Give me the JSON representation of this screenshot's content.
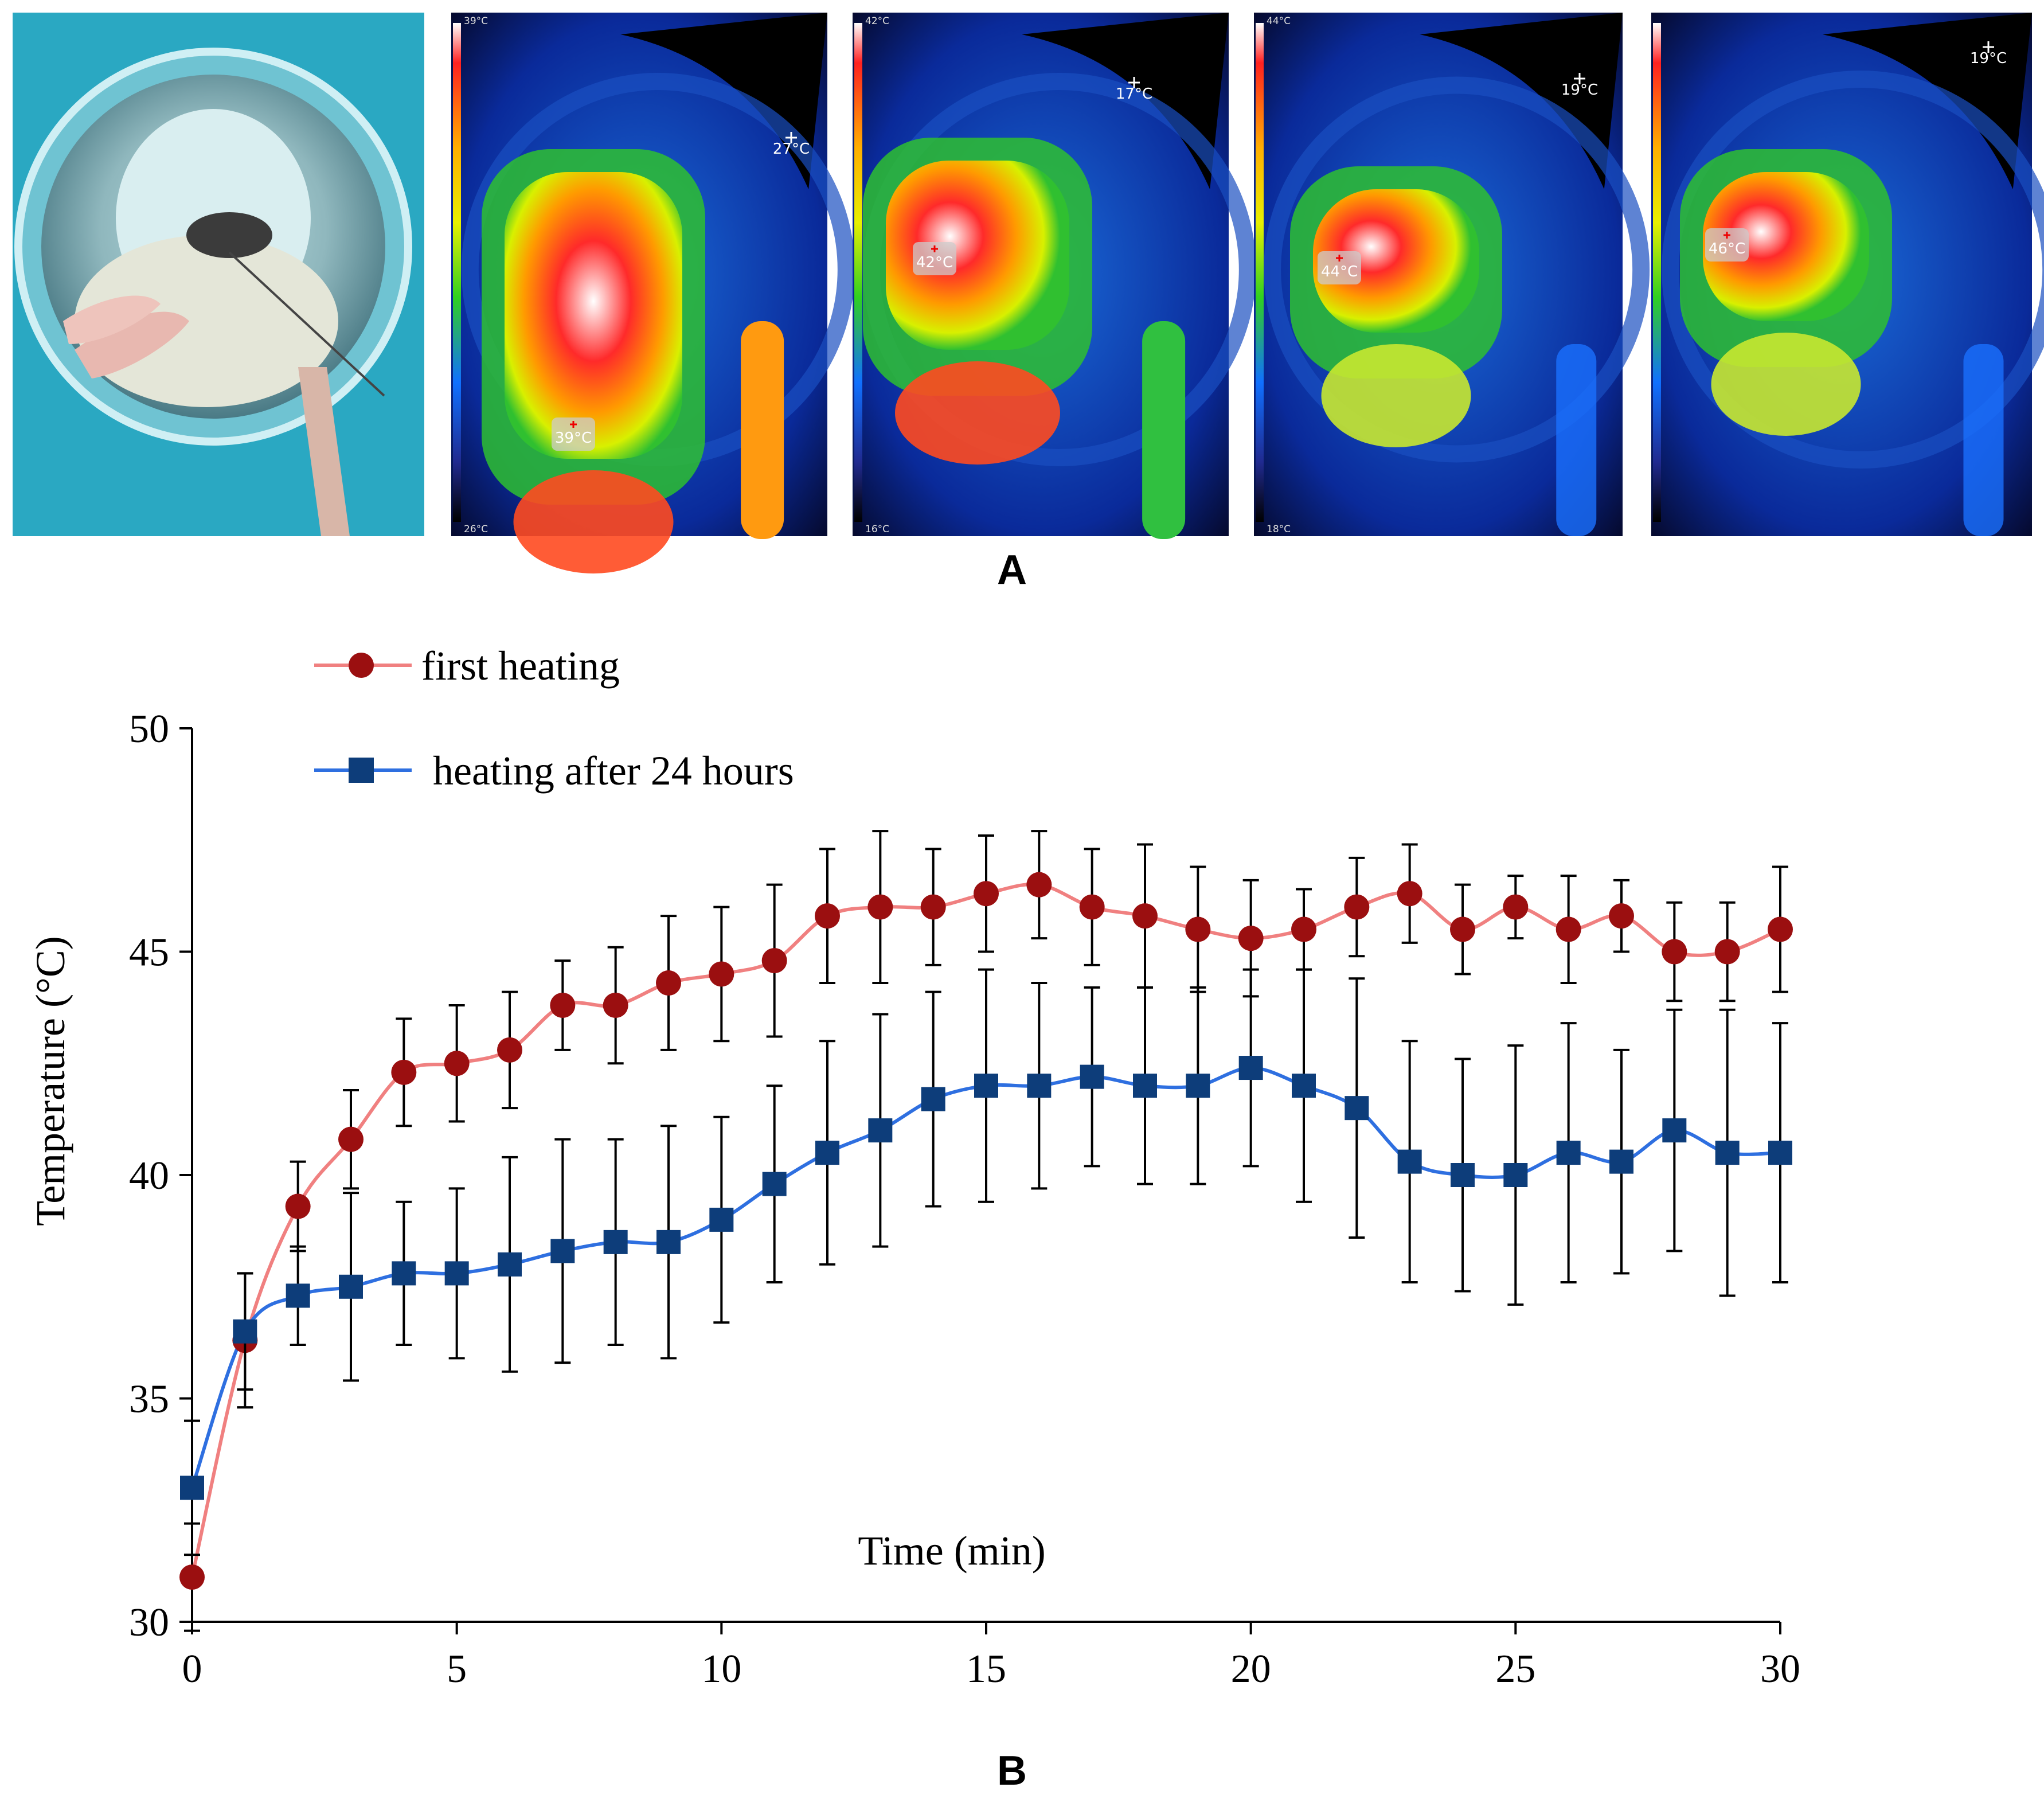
{
  "panel_a": {
    "label": "A",
    "thermal_images": [
      {
        "scale_max": "39°C",
        "scale_min": "26°C",
        "ambient": "27°C",
        "spot": "39°C"
      },
      {
        "scale_max": "42°C",
        "scale_min": "16°C",
        "ambient": "17°C",
        "spot": "42°C"
      },
      {
        "scale_max": "44°C",
        "scale_min": "18°C",
        "ambient": "19°C",
        "spot": "44°C"
      },
      {
        "scale_max": "",
        "scale_min": "",
        "ambient": "19°C",
        "spot": "46°C"
      }
    ]
  },
  "panel_b": {
    "label": "B"
  },
  "colors": {
    "first_line": "#f08080",
    "first_marker": "#9b0f10",
    "second_line": "#2e6fe0",
    "second_marker": "#0d3d7a"
  },
  "chart_data": {
    "type": "line",
    "title": "",
    "xlabel": "Time (min)",
    "ylabel": "Temperature (°C)",
    "xlim": [
      0,
      30
    ],
    "ylim": [
      30,
      50
    ],
    "xticks": [
      "0",
      "5",
      "10",
      "15",
      "20",
      "25",
      "30"
    ],
    "yticks": [
      "30",
      "35",
      "40",
      "45",
      "50"
    ],
    "x": [
      0,
      1,
      2,
      3,
      4,
      5,
      6,
      7,
      8,
      9,
      10,
      11,
      12,
      13,
      14,
      15,
      16,
      17,
      18,
      19,
      20,
      21,
      22,
      23,
      24,
      25,
      26,
      27,
      28,
      29,
      30
    ],
    "series": [
      {
        "name": "first heating",
        "marker": "circle",
        "values": [
          31.0,
          36.3,
          39.3,
          40.8,
          42.3,
          42.5,
          42.8,
          43.8,
          43.8,
          44.3,
          44.5,
          44.8,
          45.8,
          46.0,
          46.0,
          46.3,
          46.5,
          46.0,
          45.8,
          45.5,
          45.3,
          45.5,
          46.0,
          46.3,
          45.5,
          46.0,
          45.5,
          45.8,
          45.0,
          45.0,
          45.5
        ],
        "errors": [
          1.2,
          1.5,
          1.0,
          1.1,
          1.2,
          1.3,
          1.3,
          1.0,
          1.3,
          1.5,
          1.5,
          1.7,
          1.5,
          1.7,
          1.3,
          1.3,
          1.2,
          1.3,
          1.6,
          1.4,
          1.3,
          0.9,
          1.1,
          1.1,
          1.0,
          0.7,
          1.2,
          0.8,
          1.1,
          1.1,
          1.4
        ]
      },
      {
        "name": "heating after 24 hours",
        "marker": "square",
        "values": [
          33.0,
          36.5,
          37.3,
          37.5,
          37.8,
          37.8,
          38.0,
          38.3,
          38.5,
          38.5,
          39.0,
          39.8,
          40.5,
          41.0,
          41.7,
          42.0,
          42.0,
          42.2,
          42.0,
          42.0,
          42.4,
          42.0,
          41.5,
          40.3,
          40.0,
          40.0,
          40.5,
          40.3,
          41.0,
          40.5,
          40.5
        ],
        "errors": [
          1.5,
          1.3,
          1.1,
          2.1,
          1.6,
          1.9,
          2.4,
          2.5,
          2.3,
          2.6,
          2.3,
          2.2,
          2.5,
          2.6,
          2.4,
          2.6,
          2.3,
          2.0,
          2.2,
          2.2,
          2.2,
          2.6,
          2.9,
          2.7,
          2.6,
          2.9,
          2.9,
          2.5,
          2.7,
          3.2,
          2.9
        ]
      }
    ],
    "legend_position": "top-left",
    "grid": false
  }
}
